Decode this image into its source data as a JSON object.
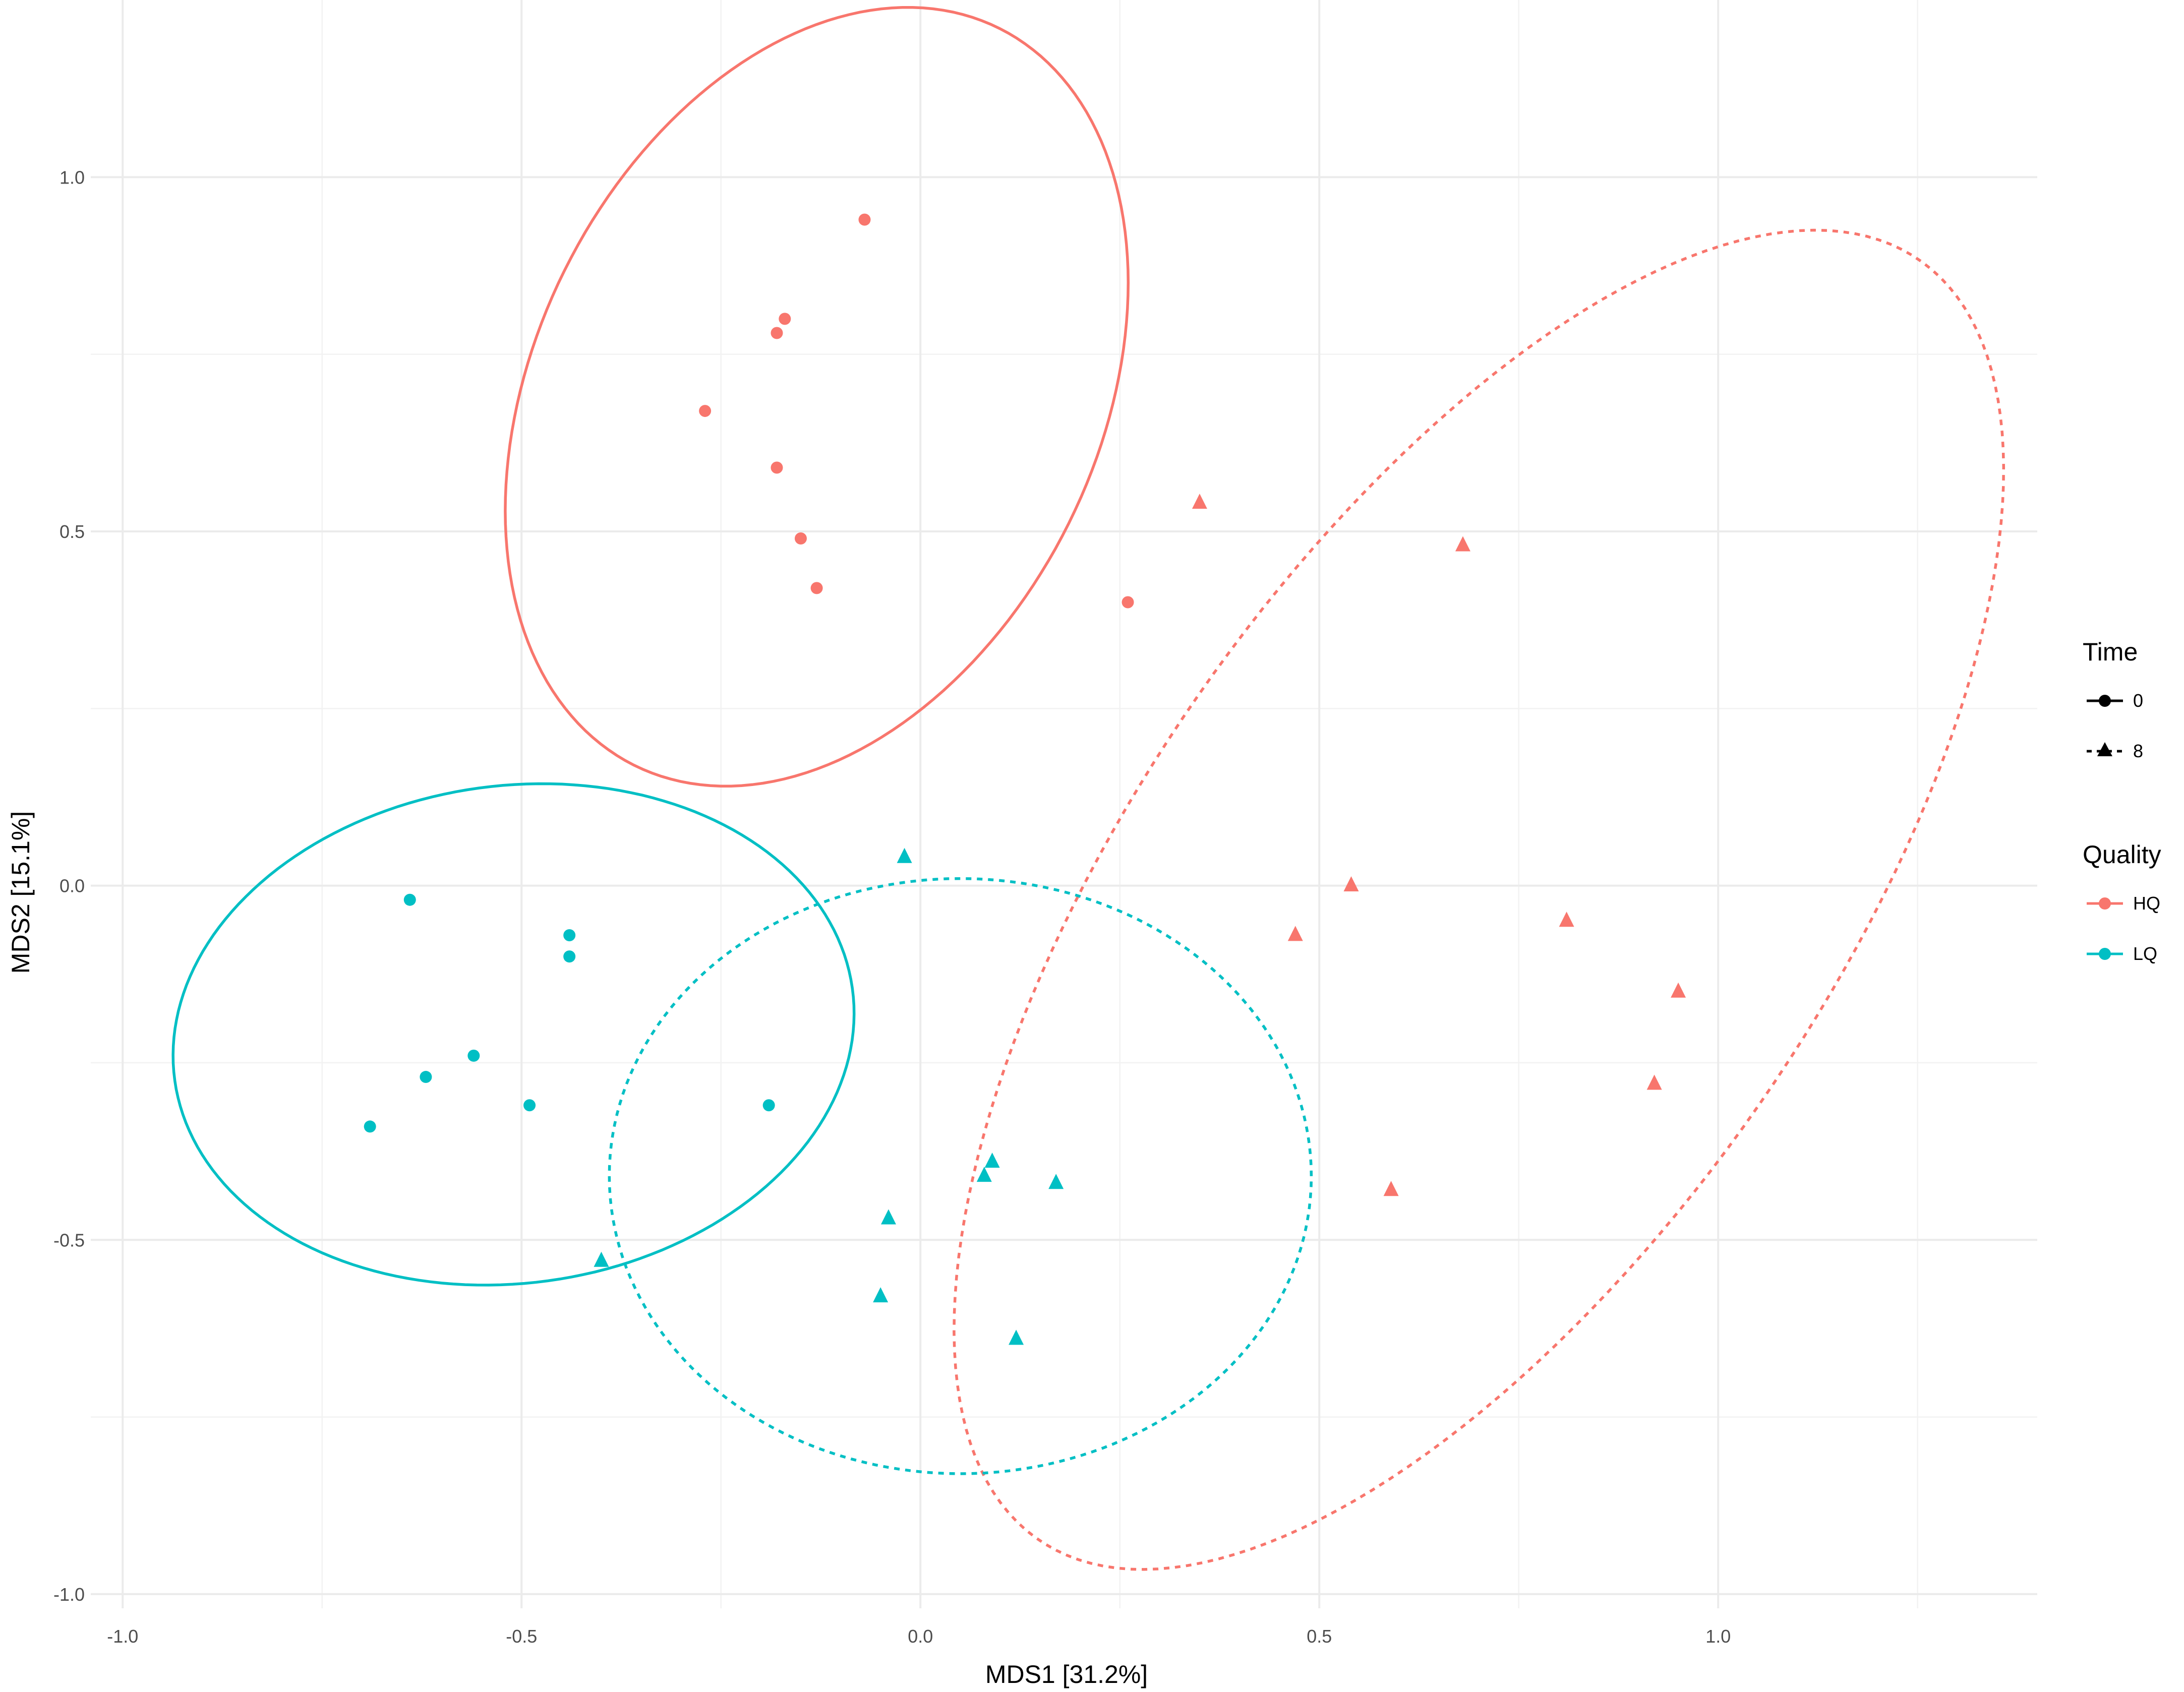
{
  "chart_data": {
    "type": "scatter",
    "title": "",
    "xlabel": "MDS1 [31.2%]",
    "ylabel": "MDS2 [15.1%]",
    "xlim": [
      -1.04,
      1.4
    ],
    "ylim": [
      -1.02,
      1.25
    ],
    "x_ticks": [
      -1.0,
      -0.5,
      0.0,
      0.5,
      1.0
    ],
    "x_tick_labels": [
      "-1.0",
      "-0.5",
      "0.0",
      "0.5",
      "1.0"
    ],
    "y_ticks": [
      -1.0,
      -0.5,
      0.0,
      0.5,
      1.0
    ],
    "y_tick_labels": [
      "-1.0",
      "-0.5",
      "0.0",
      "0.5",
      "1.0"
    ],
    "grid": true,
    "legend_position": "right",
    "colors": {
      "HQ": "#F8766D",
      "LQ": "#00BFC4"
    },
    "legends": [
      {
        "title": "Time",
        "entries": [
          {
            "label": "0",
            "shape": "circle",
            "line": "solid"
          },
          {
            "label": "8",
            "shape": "triangle",
            "line": "dashed"
          }
        ]
      },
      {
        "title": "Quality",
        "entries": [
          {
            "label": "HQ",
            "color": "#F8766D"
          },
          {
            "label": "LQ",
            "color": "#00BFC4"
          }
        ]
      }
    ],
    "series": [
      {
        "quality": "HQ",
        "time": "0",
        "shape": "circle",
        "points": [
          [
            -0.07,
            0.94
          ],
          [
            -0.17,
            0.8
          ],
          [
            -0.18,
            0.78
          ],
          [
            -0.27,
            0.67
          ],
          [
            -0.18,
            0.59
          ],
          [
            -0.15,
            0.49
          ],
          [
            -0.13,
            0.42
          ],
          [
            0.26,
            0.4
          ]
        ]
      },
      {
        "quality": "HQ",
        "time": "8",
        "shape": "triangle",
        "points": [
          [
            0.35,
            0.54
          ],
          [
            0.68,
            0.48
          ],
          [
            0.54,
            0.0
          ],
          [
            0.47,
            -0.07
          ],
          [
            0.81,
            -0.05
          ],
          [
            0.95,
            -0.15
          ],
          [
            0.92,
            -0.28
          ],
          [
            0.59,
            -0.43
          ]
        ]
      },
      {
        "quality": "LQ",
        "time": "0",
        "shape": "circle",
        "points": [
          [
            -0.64,
            -0.02
          ],
          [
            -0.44,
            -0.07
          ],
          [
            -0.44,
            -0.1
          ],
          [
            -0.56,
            -0.24
          ],
          [
            -0.62,
            -0.27
          ],
          [
            -0.49,
            -0.31
          ],
          [
            -0.69,
            -0.34
          ],
          [
            -0.19,
            -0.31
          ]
        ]
      },
      {
        "quality": "LQ",
        "time": "8",
        "shape": "triangle",
        "points": [
          [
            -0.02,
            0.04
          ],
          [
            0.09,
            -0.39
          ],
          [
            0.08,
            -0.41
          ],
          [
            0.17,
            -0.42
          ],
          [
            -0.04,
            -0.47
          ],
          [
            -0.4,
            -0.53
          ],
          [
            -0.05,
            -0.58
          ],
          [
            0.12,
            -0.64
          ]
        ]
      }
    ],
    "ellipses": [
      {
        "quality": "HQ",
        "time": "0",
        "line": "solid",
        "center": [
          -0.13,
          0.69
        ],
        "radii": [
          0.57,
          0.36
        ],
        "angle_deg": 70
      },
      {
        "quality": "HQ",
        "time": "8",
        "line": "dashed",
        "center": [
          0.7,
          -0.02
        ],
        "radii": [
          1.06,
          0.45
        ],
        "angle_deg": 60
      },
      {
        "quality": "LQ",
        "time": "0",
        "line": "solid",
        "center": [
          -0.51,
          -0.21
        ],
        "radii": [
          0.43,
          0.35
        ],
        "angle_deg": 12
      },
      {
        "quality": "LQ",
        "time": "8",
        "line": "dashed",
        "center": [
          0.05,
          -0.41
        ],
        "radii": [
          0.44,
          0.42
        ],
        "angle_deg": 0
      }
    ]
  }
}
